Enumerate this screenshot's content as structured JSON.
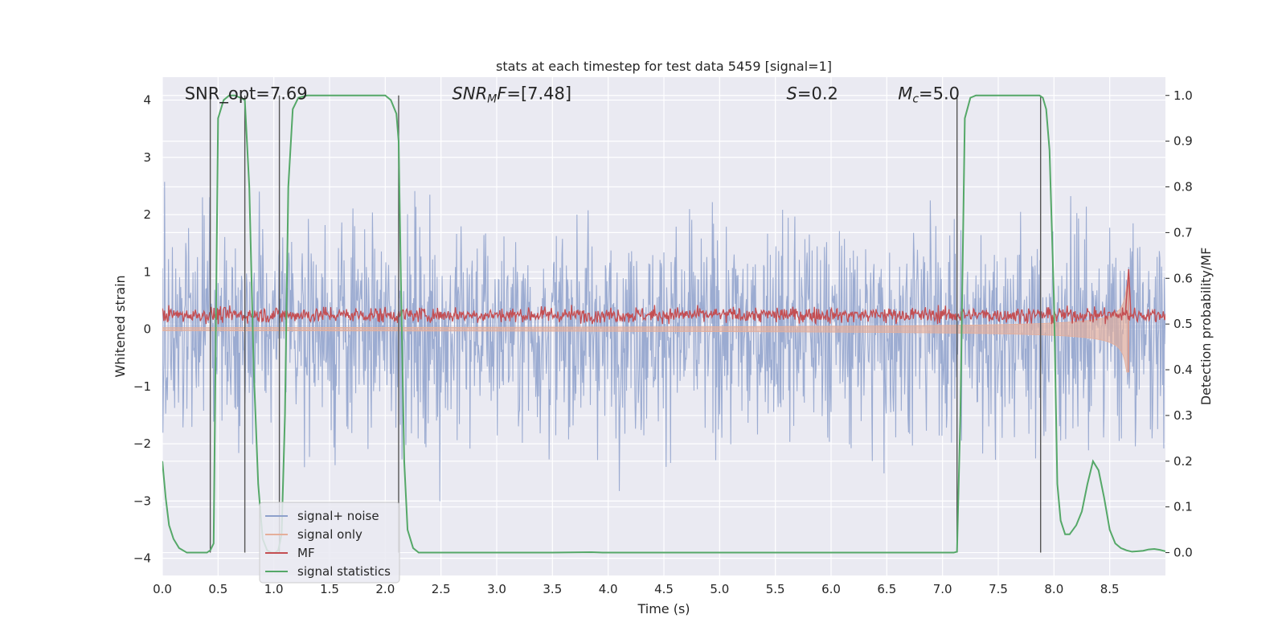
{
  "chart_data": {
    "type": "line",
    "title": "stats at each timestep for test data 5459 [signal=1]",
    "xlabel": "Time (s)",
    "ylabel_left": "Whitened strain",
    "ylabel_right": "Detection probability/MF",
    "xlim": [
      0.0,
      9.0
    ],
    "ylim_left": [
      -4.3,
      4.4
    ],
    "ylim_right": [
      -0.05,
      1.04
    ],
    "x_ticks": [
      "0.0",
      "0.5",
      "1.0",
      "1.5",
      "2.0",
      "2.5",
      "3.0",
      "3.5",
      "4.0",
      "4.5",
      "5.0",
      "5.5",
      "6.0",
      "6.5",
      "7.0",
      "7.5",
      "8.0",
      "8.5"
    ],
    "y_left_ticks": [
      "−4",
      "−3",
      "−2",
      "−1",
      "0",
      "1",
      "2",
      "3",
      "4"
    ],
    "y_right_ticks": [
      "0.0",
      "0.1",
      "0.2",
      "0.3",
      "0.4",
      "0.5",
      "0.6",
      "0.7",
      "0.8",
      "0.9",
      "1.0"
    ],
    "grid": true,
    "annotations": [
      {
        "text": "SNR_opt=7.69",
        "x": 0.2
      },
      {
        "text": "SNR",
        "sub": "M",
        "tail": "F=[7.48]",
        "x": 2.6
      },
      {
        "text": "S",
        "tail": "=0.2",
        "x": 5.6
      },
      {
        "text": "M",
        "sub": "c",
        "tail": "=5.0",
        "x": 6.6
      }
    ],
    "detection_vlines": [
      0.43,
      0.74,
      1.05,
      2.12,
      7.13,
      7.88
    ],
    "series": [
      {
        "name": "signal+ noise",
        "axis": "left",
        "style": "noise",
        "color": "#8da0cb",
        "approx_range": [
          -4.0,
          4.0
        ]
      },
      {
        "name": "signal only",
        "axis": "left",
        "style": "chirp",
        "color": "#e5ae9a",
        "approx_peak_amplitude": 1.0,
        "merger_time": 8.67
      },
      {
        "name": "MF",
        "axis": "right",
        "style": "noise",
        "color": "#c44e52",
        "approx_mean": 0.52,
        "approx_peak": 0.62
      },
      {
        "name": "signal statistics",
        "axis": "right",
        "color": "#55a868",
        "x": [
          0.0,
          0.03,
          0.06,
          0.1,
          0.15,
          0.22,
          0.3,
          0.4,
          0.43,
          0.46,
          0.5,
          0.55,
          0.6,
          0.65,
          0.7,
          0.74,
          0.78,
          0.82,
          0.86,
          0.9,
          0.94,
          0.98,
          1.01,
          1.04,
          1.07,
          1.1,
          1.13,
          1.17,
          1.22,
          1.3,
          1.5,
          1.8,
          1.95,
          2.0,
          2.05,
          2.1,
          2.12,
          2.14,
          2.17,
          2.2,
          2.25,
          2.3,
          2.6,
          3.0,
          3.5,
          3.85,
          3.95,
          4.2,
          5.0,
          6.0,
          7.0,
          7.1,
          7.13,
          7.16,
          7.2,
          7.25,
          7.3,
          7.5,
          7.8,
          7.87,
          7.9,
          7.93,
          7.96,
          8.0,
          8.03,
          8.06,
          8.1,
          8.14,
          8.2,
          8.25,
          8.3,
          8.35,
          8.4,
          8.45,
          8.5,
          8.55,
          8.6,
          8.65,
          8.7,
          8.75,
          8.8,
          8.85,
          8.9,
          8.95,
          9.0
        ],
        "values": [
          0.2,
          0.12,
          0.06,
          0.03,
          0.01,
          0.0,
          0.0,
          0.0,
          0.005,
          0.02,
          0.95,
          0.99,
          1.0,
          1.0,
          0.995,
          0.99,
          0.8,
          0.4,
          0.15,
          0.03,
          0.005,
          0.0,
          0.0,
          0.005,
          0.04,
          0.3,
          0.8,
          0.97,
          0.995,
          1.0,
          1.0,
          1.0,
          1.0,
          1.0,
          0.99,
          0.96,
          0.9,
          0.6,
          0.2,
          0.05,
          0.01,
          0.0,
          0.0,
          0.0,
          0.0,
          0.001,
          0.0,
          0.0,
          0.0,
          0.0,
          0.0,
          0.0,
          0.002,
          0.3,
          0.95,
          0.995,
          1.0,
          1.0,
          1.0,
          1.0,
          0.995,
          0.97,
          0.88,
          0.55,
          0.15,
          0.07,
          0.04,
          0.04,
          0.06,
          0.09,
          0.15,
          0.2,
          0.18,
          0.12,
          0.05,
          0.02,
          0.01,
          0.005,
          0.002,
          0.003,
          0.004,
          0.007,
          0.008,
          0.006,
          0.003
        ]
      }
    ],
    "legend": {
      "placement": "lower-left"
    }
  }
}
